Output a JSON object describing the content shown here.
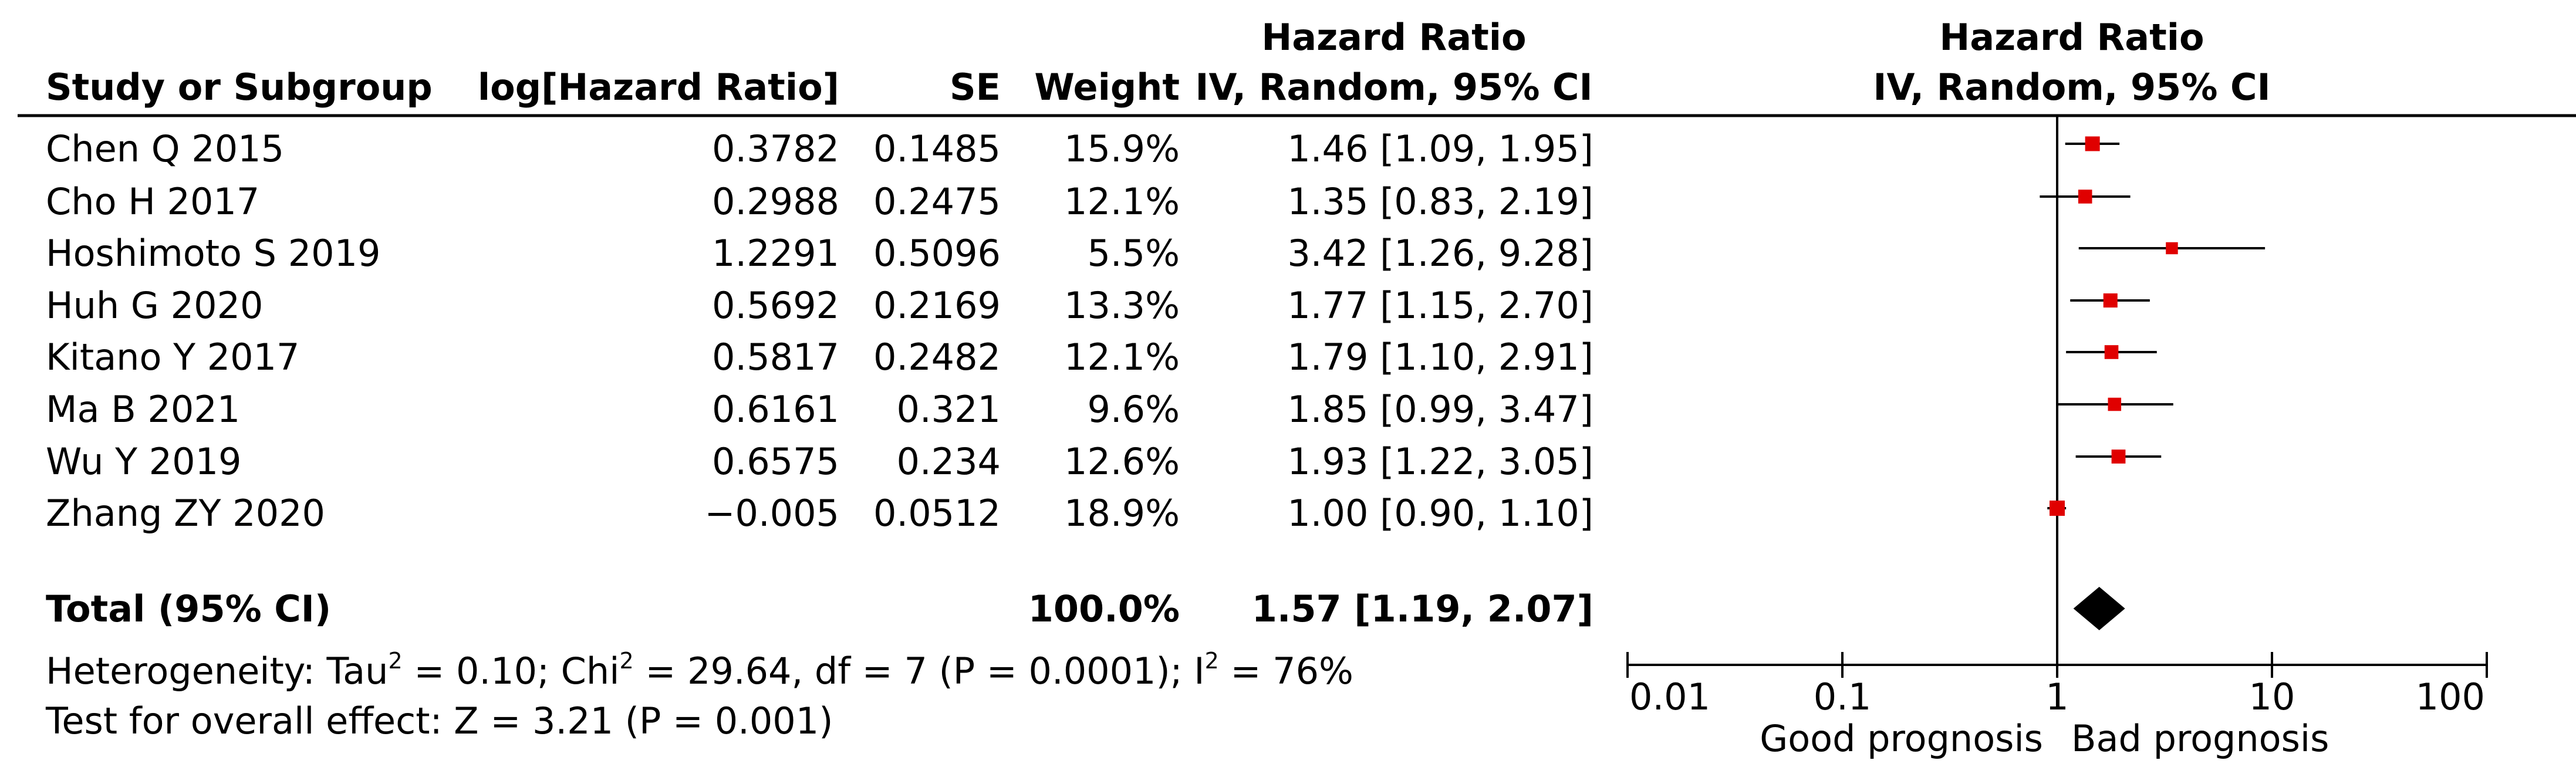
{
  "table": {
    "header": {
      "study": "Study or Subgroup",
      "logHR": "log[Hazard Ratio]",
      "se": "SE",
      "weight": "Weight",
      "hr_line1": "Hazard Ratio",
      "hr_line2": "IV, Random, 95% CI"
    },
    "rows": [
      {
        "study": "Chen Q 2015",
        "logHR": "0.3782",
        "se": "0.1485",
        "weight": "15.9%",
        "ci": "1.46 [1.09, 1.95]"
      },
      {
        "study": "Cho H 2017",
        "logHR": "0.2988",
        "se": "0.2475",
        "weight": "12.1%",
        "ci": "1.35 [0.83, 2.19]"
      },
      {
        "study": "Hoshimoto S 2019",
        "logHR": "1.2291",
        "se": "0.5096",
        "weight": "5.5%",
        "ci": "3.42 [1.26, 9.28]"
      },
      {
        "study": "Huh G 2020",
        "logHR": "0.5692",
        "se": "0.2169",
        "weight": "13.3%",
        "ci": "1.77 [1.15, 2.70]"
      },
      {
        "study": "Kitano Y  2017",
        "logHR": "0.5817",
        "se": "0.2482",
        "weight": "12.1%",
        "ci": "1.79 [1.10, 2.91]"
      },
      {
        "study": "Ma B 2021",
        "logHR": "0.6161",
        "se": "0.321",
        "weight": "9.6%",
        "ci": "1.85 [0.99, 3.47]"
      },
      {
        "study": "Wu Y 2019",
        "logHR": "0.6575",
        "se": "0.234",
        "weight": "12.6%",
        "ci": "1.93 [1.22, 3.05]"
      },
      {
        "study": "Zhang ZY 2020",
        "logHR": "−0.005",
        "se": "0.0512",
        "weight": "18.9%",
        "ci": "1.00 [0.90, 1.10]"
      }
    ],
    "total": {
      "label": "Total (95% CI)",
      "weight": "100.0%",
      "ci": "1.57 [1.19, 2.07]"
    },
    "heterogeneity": {
      "prefix": "Heterogeneity: Tau",
      "tau_part": " = 0.10; Chi",
      "chi_part": " = 29.64, df = 7 (P = 0.0001); I",
      "i_part": " = 76%",
      "sup": "2"
    },
    "overall_effect": "Test for overall effect: Z = 3.21 (P = 0.001)"
  },
  "plot": {
    "header_line1": "Hazard Ratio",
    "header_line2": "IV, Random, 95% CI",
    "tick_labels": [
      "0.01",
      "0.1",
      "1",
      "10",
      "100"
    ],
    "left_label": "Good prognosis",
    "right_label": "Bad prognosis"
  },
  "chart_data": {
    "type": "forest",
    "scale": "log",
    "xlim": [
      0.01,
      100
    ],
    "x_ticks": [
      0.01,
      0.1,
      1,
      10,
      100
    ],
    "reference_line": 1,
    "studies": [
      {
        "name": "Chen Q 2015",
        "hr": 1.46,
        "lower": 1.09,
        "upper": 1.95,
        "weight": 15.9
      },
      {
        "name": "Cho H 2017",
        "hr": 1.35,
        "lower": 0.83,
        "upper": 2.19,
        "weight": 12.1
      },
      {
        "name": "Hoshimoto S 2019",
        "hr": 3.42,
        "lower": 1.26,
        "upper": 9.28,
        "weight": 5.5
      },
      {
        "name": "Huh G 2020",
        "hr": 1.77,
        "lower": 1.15,
        "upper": 2.7,
        "weight": 13.3
      },
      {
        "name": "Kitano Y  2017",
        "hr": 1.79,
        "lower": 1.1,
        "upper": 2.91,
        "weight": 12.1
      },
      {
        "name": "Ma B 2021",
        "hr": 1.85,
        "lower": 0.99,
        "upper": 3.47,
        "weight": 9.6
      },
      {
        "name": "Wu Y 2019",
        "hr": 1.93,
        "lower": 1.22,
        "upper": 3.05,
        "weight": 12.6
      },
      {
        "name": "Zhang ZY 2020",
        "hr": 1.0,
        "lower": 0.9,
        "upper": 1.1,
        "weight": 18.9
      }
    ],
    "total": {
      "hr": 1.57,
      "lower": 1.19,
      "upper": 2.07
    },
    "colors": {
      "marker": "#e00000",
      "diamond": "#000000",
      "line": "#000000"
    }
  }
}
